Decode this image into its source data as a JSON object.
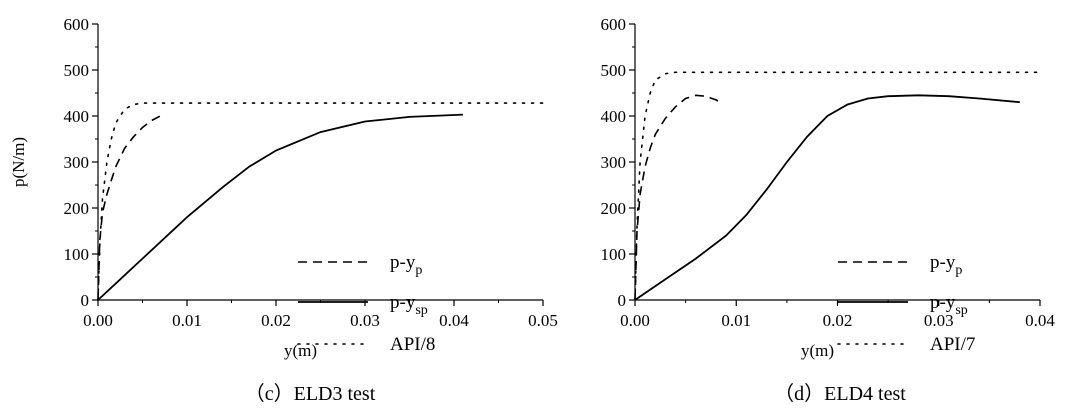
{
  "chart_data": [
    {
      "type": "line",
      "caption": "（c）ELD3 test",
      "xlabel": "y(m)",
      "ylabel": "p(N/m)",
      "xlim": [
        0,
        0.05
      ],
      "ylim": [
        0,
        600
      ],
      "xticks": [
        "0.00",
        "0.01",
        "0.02",
        "0.03",
        "0.04",
        "0.05"
      ],
      "yticks": [
        "0",
        "100",
        "200",
        "300",
        "400",
        "500",
        "600"
      ],
      "legend_position": "right",
      "series": [
        {
          "name": "p-y",
          "sub": "p",
          "style": "dashed",
          "x": [
            0,
            0.0002,
            0.0005,
            0.001,
            0.0015,
            0.002,
            0.003,
            0.004,
            0.005,
            0.006,
            0.007
          ],
          "y": [
            0,
            130,
            190,
            230,
            260,
            290,
            330,
            355,
            375,
            390,
            400
          ]
        },
        {
          "name": "p-y",
          "sub": "sp",
          "style": "solid",
          "x": [
            0,
            0.005,
            0.01,
            0.014,
            0.017,
            0.02,
            0.025,
            0.03,
            0.035,
            0.041
          ],
          "y": [
            0,
            90,
            180,
            245,
            290,
            325,
            365,
            388,
            398,
            403
          ]
        },
        {
          "name": "API/8",
          "style": "dotted",
          "x": [
            0,
            0.0002,
            0.0005,
            0.001,
            0.0015,
            0.002,
            0.003,
            0.004,
            0.005,
            0.01,
            0.02,
            0.03,
            0.04,
            0.05
          ],
          "y": [
            0,
            120,
            220,
            300,
            350,
            385,
            415,
            425,
            428,
            428,
            428,
            428,
            428,
            428
          ]
        }
      ]
    },
    {
      "type": "line",
      "caption": "（d）ELD4 test",
      "xlabel": "y(m)",
      "ylabel": "",
      "xlim": [
        0,
        0.04
      ],
      "ylim": [
        0,
        600
      ],
      "xticks": [
        "0.00",
        "0.01",
        "0.02",
        "0.03",
        "0.04"
      ],
      "yticks": [
        "0",
        "100",
        "200",
        "300",
        "400",
        "500",
        "600"
      ],
      "legend_position": "right",
      "series": [
        {
          "name": "p-y",
          "sub": "p",
          "style": "dashed",
          "x": [
            0,
            0.0002,
            0.0005,
            0.001,
            0.0015,
            0.002,
            0.003,
            0.004,
            0.005,
            0.006,
            0.007,
            0.008,
            0.0085
          ],
          "y": [
            0,
            150,
            230,
            290,
            330,
            360,
            395,
            420,
            438,
            445,
            443,
            435,
            428
          ]
        },
        {
          "name": "p-y",
          "sub": "sp",
          "style": "solid",
          "x": [
            0,
            0.003,
            0.006,
            0.009,
            0.011,
            0.013,
            0.015,
            0.017,
            0.019,
            0.021,
            0.023,
            0.025,
            0.028,
            0.031,
            0.034,
            0.038
          ],
          "y": [
            0,
            45,
            90,
            140,
            185,
            240,
            300,
            355,
            400,
            425,
            438,
            443,
            445,
            443,
            438,
            430
          ]
        },
        {
          "name": "API/7",
          "style": "dotted",
          "x": [
            0,
            0.0002,
            0.0005,
            0.001,
            0.0015,
            0.002,
            0.003,
            0.004,
            0.01,
            0.02,
            0.03,
            0.04
          ],
          "y": [
            0,
            160,
            300,
            400,
            450,
            478,
            492,
            495,
            495,
            495,
            495,
            495
          ]
        }
      ]
    }
  ]
}
